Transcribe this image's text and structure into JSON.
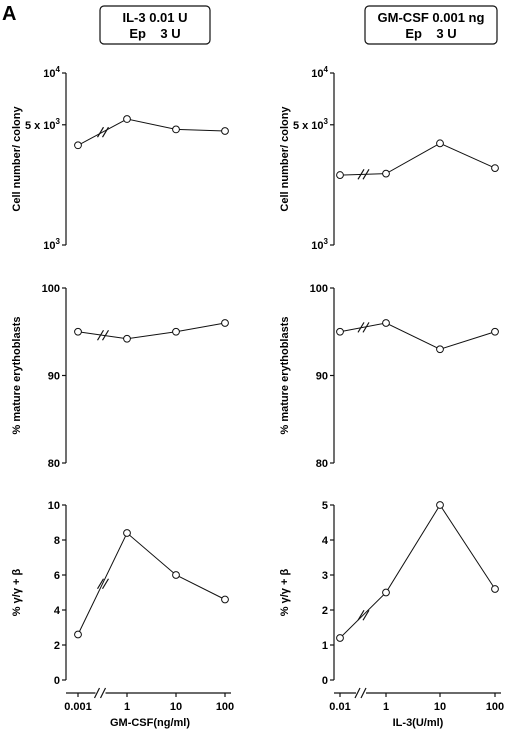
{
  "figure": {
    "panel_letter": "A"
  },
  "columns": [
    {
      "condition": [
        "IL-3 0.01 U",
        "Ep    3 U"
      ],
      "xlabel": "GM-CSF(ng/ml)",
      "x_ticks": [
        "0.001",
        "1",
        "10",
        "100"
      ]
    },
    {
      "condition": [
        "GM-CSF 0.001 ng",
        "Ep    3 U"
      ],
      "xlabel": "IL-3(U/ml)",
      "x_ticks": [
        "0.01",
        "1",
        "10",
        "100"
      ]
    }
  ],
  "chart_data": [
    {
      "type": "line",
      "xlabel": "",
      "ylabel": "Cell number/ colony",
      "y_scale": "log",
      "ylim": [
        1000,
        10000
      ],
      "y_ticks": [
        {
          "value": 1000,
          "base": "10",
          "exp": "3"
        },
        {
          "value": 5000,
          "base": "5 x 10",
          "exp": "3"
        },
        {
          "value": 10000,
          "base": "10",
          "exp": "4"
        }
      ],
      "x": [
        0.001,
        1,
        10,
        100
      ],
      "values": [
        3800,
        5400,
        4700,
        4600
      ],
      "axis_break": true
    },
    {
      "type": "line",
      "xlabel": "",
      "ylabel": "Cell number/ colony",
      "y_scale": "log",
      "ylim": [
        1000,
        10000
      ],
      "y_ticks": [
        {
          "value": 1000,
          "base": "10",
          "exp": "3"
        },
        {
          "value": 5000,
          "base": "5 x 10",
          "exp": "3"
        },
        {
          "value": 10000,
          "base": "10",
          "exp": "4"
        }
      ],
      "x": [
        0.01,
        1,
        10,
        100
      ],
      "values": [
        2550,
        2600,
        3900,
        2800
      ],
      "axis_break": true
    },
    {
      "type": "line",
      "xlabel": "",
      "ylabel": "% mature erythoblasts",
      "y_scale": "linear",
      "ylim": [
        80,
        100
      ],
      "y_ticks": [
        {
          "value": 80,
          "label": "80"
        },
        {
          "value": 90,
          "label": "90"
        },
        {
          "value": 100,
          "label": "100"
        }
      ],
      "x": [
        0.001,
        1,
        10,
        100
      ],
      "values": [
        95,
        94.2,
        95,
        96
      ],
      "axis_break": true
    },
    {
      "type": "line",
      "xlabel": "",
      "ylabel": "% mature erythoblasts",
      "y_scale": "linear",
      "ylim": [
        80,
        100
      ],
      "y_ticks": [
        {
          "value": 80,
          "label": "80"
        },
        {
          "value": 90,
          "label": "90"
        },
        {
          "value": 100,
          "label": "100"
        }
      ],
      "x": [
        0.01,
        1,
        10,
        100
      ],
      "values": [
        95,
        96,
        93,
        95
      ],
      "axis_break": true
    },
    {
      "type": "line",
      "xlabel": "GM-CSF(ng/ml)",
      "ylabel": "% γ/γ + β",
      "y_scale": "linear",
      "ylim": [
        0,
        10
      ],
      "y_ticks": [
        {
          "value": 0,
          "label": "0"
        },
        {
          "value": 2,
          "label": "2"
        },
        {
          "value": 4,
          "label": "4"
        },
        {
          "value": 6,
          "label": "6"
        },
        {
          "value": 8,
          "label": "8"
        },
        {
          "value": 10,
          "label": "10"
        }
      ],
      "x": [
        0.001,
        1,
        10,
        100
      ],
      "values": [
        2.6,
        8.4,
        6.0,
        4.6
      ],
      "axis_break": true
    },
    {
      "type": "line",
      "xlabel": "IL-3(U/ml)",
      "ylabel": "% γ/γ + β",
      "y_scale": "linear",
      "ylim": [
        0,
        5
      ],
      "y_ticks": [
        {
          "value": 0,
          "label": "0"
        },
        {
          "value": 1,
          "label": "1"
        },
        {
          "value": 2,
          "label": "2"
        },
        {
          "value": 3,
          "label": "3"
        },
        {
          "value": 4,
          "label": "4"
        },
        {
          "value": 5,
          "label": "5"
        }
      ],
      "x": [
        0.01,
        1,
        10,
        100
      ],
      "values": [
        1.2,
        2.5,
        5.0,
        2.6
      ],
      "axis_break": true
    }
  ]
}
